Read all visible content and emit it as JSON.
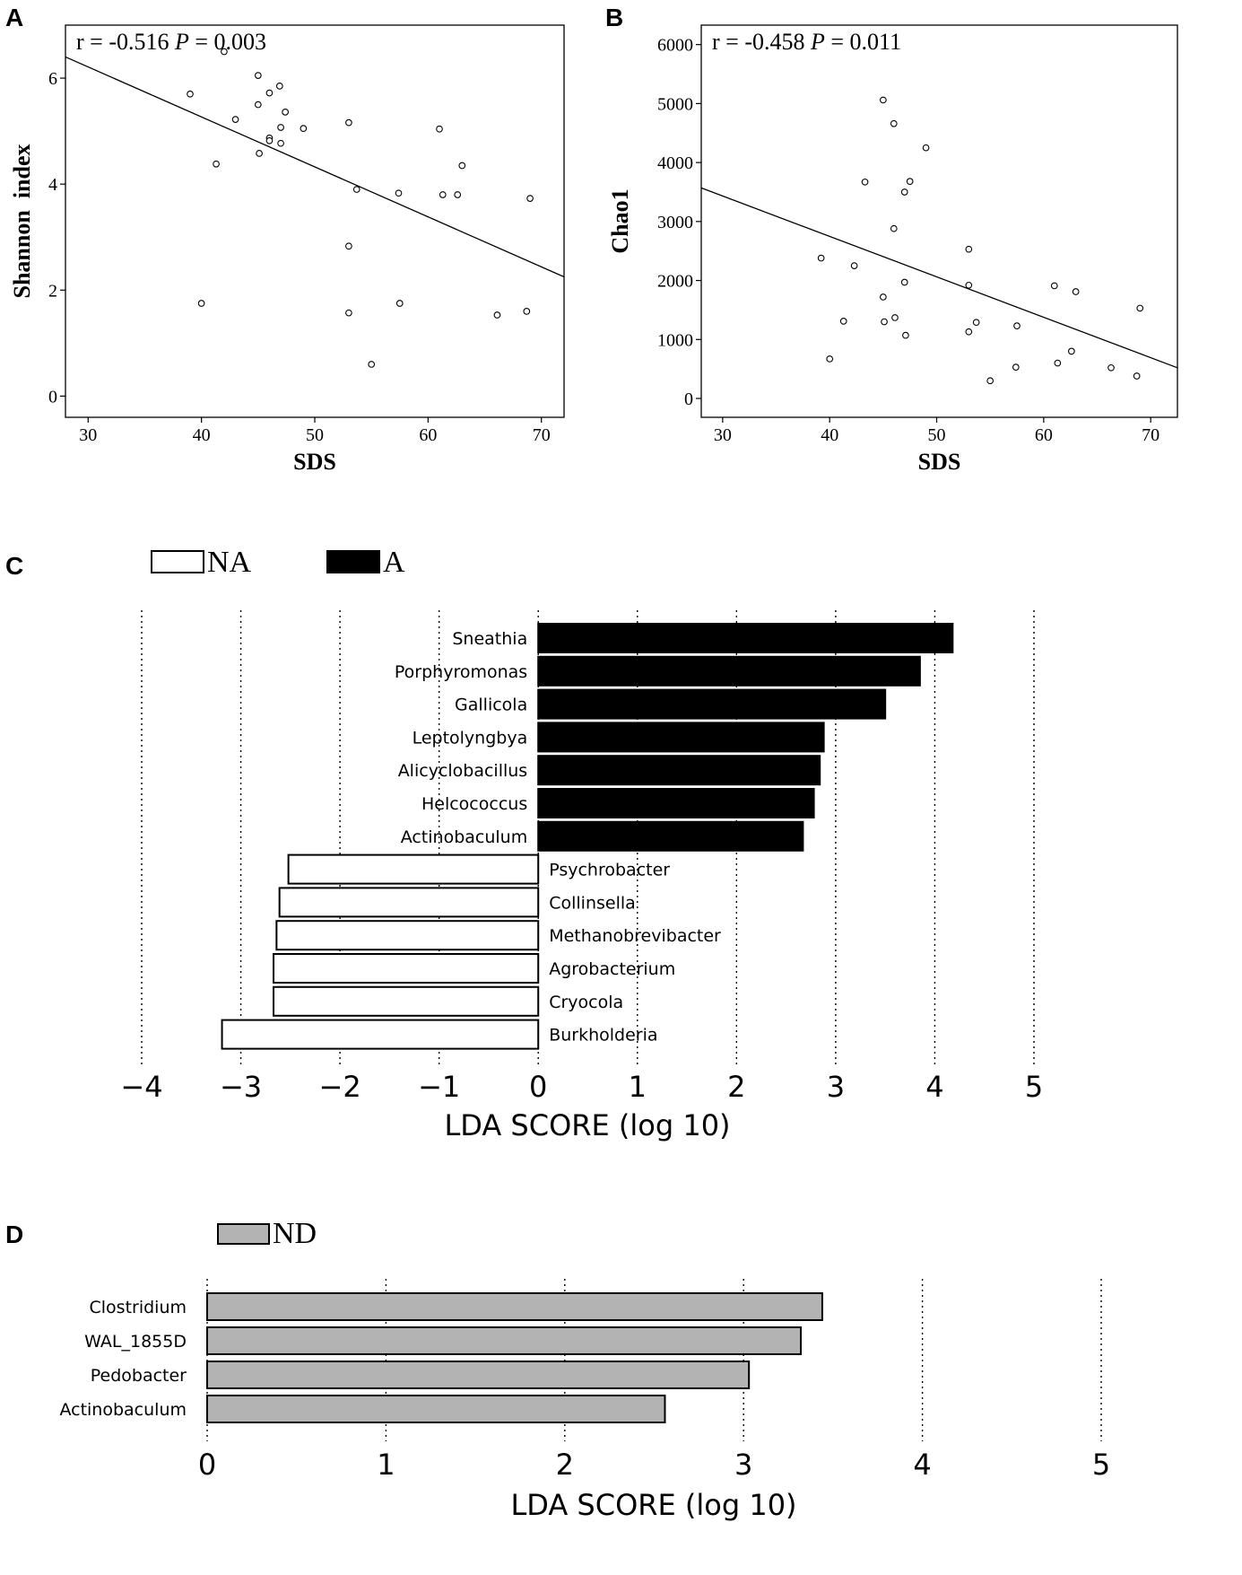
{
  "panels": {
    "A": "A",
    "B": "B",
    "C": "C",
    "D": "D"
  },
  "chart_data": [
    {
      "id": "A",
      "type": "scatter",
      "title": "",
      "annotation": "r = -0.516 P = 0.003",
      "annotation_parts": {
        "r": "r = -0.516 ",
        "p_symbol": "P",
        "p_value": " = 0.003"
      },
      "xlabel": "SDS",
      "ylabel": "Shannon  index",
      "xlim": [
        28,
        72
      ],
      "ylim": [
        -0.4,
        7.0
      ],
      "xticks": [
        30,
        40,
        50,
        60,
        70
      ],
      "yticks": [
        0,
        2,
        4,
        6
      ],
      "trend_line": {
        "x": [
          28,
          72
        ],
        "y": [
          6.4,
          2.25
        ]
      },
      "points": {
        "x": [
          39,
          40,
          41.3,
          42,
          43,
          45,
          45,
          45.1,
          46,
          46,
          46,
          46.9,
          47,
          47,
          47.4,
          49,
          53,
          53,
          53,
          53.7,
          55,
          57.4,
          57.5,
          61,
          61.3,
          62.6,
          63,
          66.1,
          68.7,
          69
        ],
        "y": [
          5.7,
          1.75,
          4.38,
          6.5,
          5.22,
          6.05,
          5.5,
          4.58,
          5.72,
          4.87,
          4.82,
          5.85,
          5.07,
          4.77,
          5.36,
          5.05,
          5.16,
          2.83,
          1.57,
          3.9,
          0.6,
          3.83,
          1.75,
          5.04,
          3.8,
          3.8,
          4.35,
          1.53,
          1.6,
          3.73
        ]
      }
    },
    {
      "id": "B",
      "type": "scatter",
      "title": "",
      "annotation": "r = -0.458 P = 0.011",
      "annotation_parts": {
        "r": "r = -0.458 ",
        "p_symbol": "P",
        "p_value": " = 0.011"
      },
      "xlabel": "SDS",
      "ylabel": "Chao1",
      "xlim": [
        28,
        72.5
      ],
      "ylim": [
        -320,
        6330
      ],
      "xticks": [
        30,
        40,
        50,
        60,
        70
      ],
      "yticks": [
        0,
        1000,
        2000,
        3000,
        4000,
        5000,
        6000
      ],
      "trend_line": {
        "x": [
          28,
          72.5
        ],
        "y": [
          3570,
          520
        ]
      },
      "points": {
        "x": [
          39.2,
          40,
          41.3,
          42.3,
          43.3,
          45,
          45,
          45.1,
          46,
          46,
          46.1,
          47,
          47,
          47.1,
          47.5,
          49,
          53,
          53,
          53,
          53.7,
          55,
          57.4,
          57.5,
          61,
          61.3,
          62.6,
          63,
          66.3,
          68.7,
          69
        ],
        "y": [
          2380,
          670,
          1310,
          2250,
          3670,
          5060,
          1720,
          1300,
          4660,
          2880,
          1370,
          3500,
          1970,
          1070,
          3680,
          4250,
          2530,
          1920,
          1130,
          1290,
          300,
          530,
          1230,
          1910,
          600,
          800,
          1810,
          520,
          380,
          1530
        ]
      }
    },
    {
      "id": "C",
      "type": "bar",
      "orientation": "horizontal",
      "xlabel": "LDA SCORE (log 10)",
      "xlim": [
        -4,
        5
      ],
      "xticks": [
        -4,
        -3,
        -2,
        -1,
        0,
        1,
        2,
        3,
        4,
        5
      ],
      "xtick_labels": [
        "−4",
        "−3",
        "−2",
        "−1",
        "0",
        "1",
        "2",
        "3",
        "4",
        "5"
      ],
      "legend": [
        {
          "label": "NA",
          "color": "#ffffff"
        },
        {
          "label": "A",
          "color": "#000000"
        }
      ],
      "legend_position": "top-left",
      "grid": true,
      "series": [
        {
          "name": "A",
          "color": "#000000",
          "categories": [
            "Sneathia",
            "Porphyromonas",
            "Gallicola",
            "Leptolyngbya",
            "Alicyclobacillus",
            "Helcococcus",
            "Actinobaculum"
          ],
          "values": [
            4.18,
            3.85,
            3.5,
            2.88,
            2.84,
            2.78,
            2.67
          ]
        },
        {
          "name": "NA",
          "color": "#ffffff",
          "categories": [
            "Psychrobacter",
            "Collinsella",
            "Methanobrevibacter",
            "Agrobacterium",
            "Cryocola",
            "Burkholderia"
          ],
          "values": [
            -2.52,
            -2.61,
            -2.64,
            -2.67,
            -2.67,
            -3.19
          ]
        }
      ]
    },
    {
      "id": "D",
      "type": "bar",
      "orientation": "horizontal",
      "xlabel": "LDA SCORE (log 10)",
      "xlim": [
        0,
        5
      ],
      "xticks": [
        0,
        1,
        2,
        3,
        4,
        5
      ],
      "xtick_labels": [
        "0",
        "1",
        "2",
        "3",
        "4",
        "5"
      ],
      "legend": [
        {
          "label": "ND",
          "color": "#b3b3b3"
        }
      ],
      "legend_position": "top-left",
      "grid": true,
      "series": [
        {
          "name": "ND",
          "color": "#b3b3b3",
          "categories": [
            "Clostridium",
            "WAL_1855D",
            "Pedobacter",
            "Actinobaculum"
          ],
          "values": [
            3.44,
            3.32,
            3.03,
            2.56
          ]
        }
      ]
    }
  ]
}
